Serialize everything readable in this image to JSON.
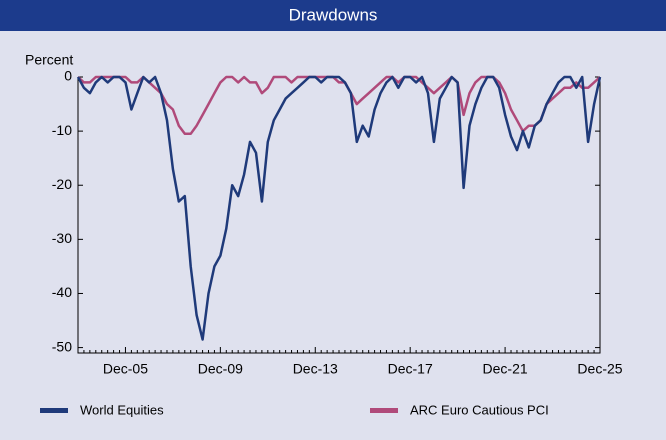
{
  "chart_data": {
    "type": "line",
    "title": "Drawdowns",
    "y_label": "Percent",
    "categories": [
      null,
      null,
      null,
      null,
      null,
      null,
      null,
      null,
      "Dec-05",
      null,
      null,
      null,
      null,
      null,
      null,
      null,
      null,
      null,
      null,
      null,
      null,
      null,
      null,
      null,
      "Dec-09",
      null,
      null,
      null,
      null,
      null,
      null,
      null,
      null,
      null,
      null,
      null,
      null,
      null,
      null,
      null,
      "Dec-13",
      null,
      null,
      null,
      null,
      null,
      null,
      null,
      null,
      null,
      null,
      null,
      null,
      null,
      null,
      null,
      "Dec-17",
      null,
      null,
      null,
      null,
      null,
      null,
      null,
      null,
      null,
      null,
      null,
      null,
      null,
      null,
      null,
      "Dec-21",
      null,
      null,
      null,
      null,
      null,
      null,
      null,
      null,
      null,
      null,
      null,
      null,
      null,
      null,
      null,
      "Dec-25"
    ],
    "series": [
      {
        "name": "World Equities",
        "color": "#1f3a7a",
        "values": [
          0,
          -2,
          -3,
          -1,
          0,
          -1,
          0,
          0,
          -1,
          -6,
          -3,
          0,
          -1,
          0,
          -3,
          -8,
          -17,
          -23,
          -22,
          -35,
          -44,
          -48.5,
          -40,
          -35,
          -33,
          -28,
          -20,
          -22,
          -18,
          -12,
          -14,
          -23,
          -12,
          -8,
          -6,
          -4,
          -3,
          -2,
          -1,
          0,
          0,
          -1,
          0,
          0,
          0,
          -1,
          -3,
          -12,
          -9,
          -11,
          -6,
          -3,
          -1,
          0,
          -2,
          0,
          0,
          -1,
          0,
          -3,
          -12,
          -4,
          -2,
          0,
          -1,
          -20.5,
          -9,
          -5,
          -2,
          0,
          0,
          -2,
          -7,
          -11,
          -13.5,
          -10,
          -13,
          -9,
          -8,
          -5,
          -3,
          -1,
          0,
          0,
          -2,
          0,
          -12,
          -5,
          0
        ]
      },
      {
        "name": "ARC Euro Cautious PCI",
        "color": "#b04a7a",
        "values": [
          0,
          -1,
          -1,
          0,
          0,
          0,
          0,
          0,
          0,
          -1,
          -1,
          0,
          -1,
          -2,
          -3,
          -5,
          -6,
          -9,
          -10.5,
          -10.5,
          -9,
          -7,
          -5,
          -3,
          -1,
          0,
          0,
          -1,
          0,
          -1,
          -1,
          -3,
          -2,
          0,
          0,
          0,
          -1,
          0,
          0,
          0,
          0,
          0,
          0,
          0,
          -1,
          -1,
          -3,
          -5,
          -4,
          -3,
          -2,
          -1,
          0,
          0,
          -1,
          0,
          0,
          0,
          -1,
          -2,
          -3,
          -2,
          -1,
          0,
          -1,
          -7,
          -3,
          -1,
          0,
          0,
          0,
          -1,
          -3,
          -6,
          -8,
          -10,
          -9,
          -9,
          -8,
          -5,
          -4,
          -3,
          -2,
          -2,
          -1,
          -2,
          -2,
          -1,
          0
        ]
      }
    ],
    "ylim": [
      -51,
      0
    ],
    "yticks": [
      0,
      -10,
      -20,
      -30,
      -40,
      -50
    ]
  }
}
